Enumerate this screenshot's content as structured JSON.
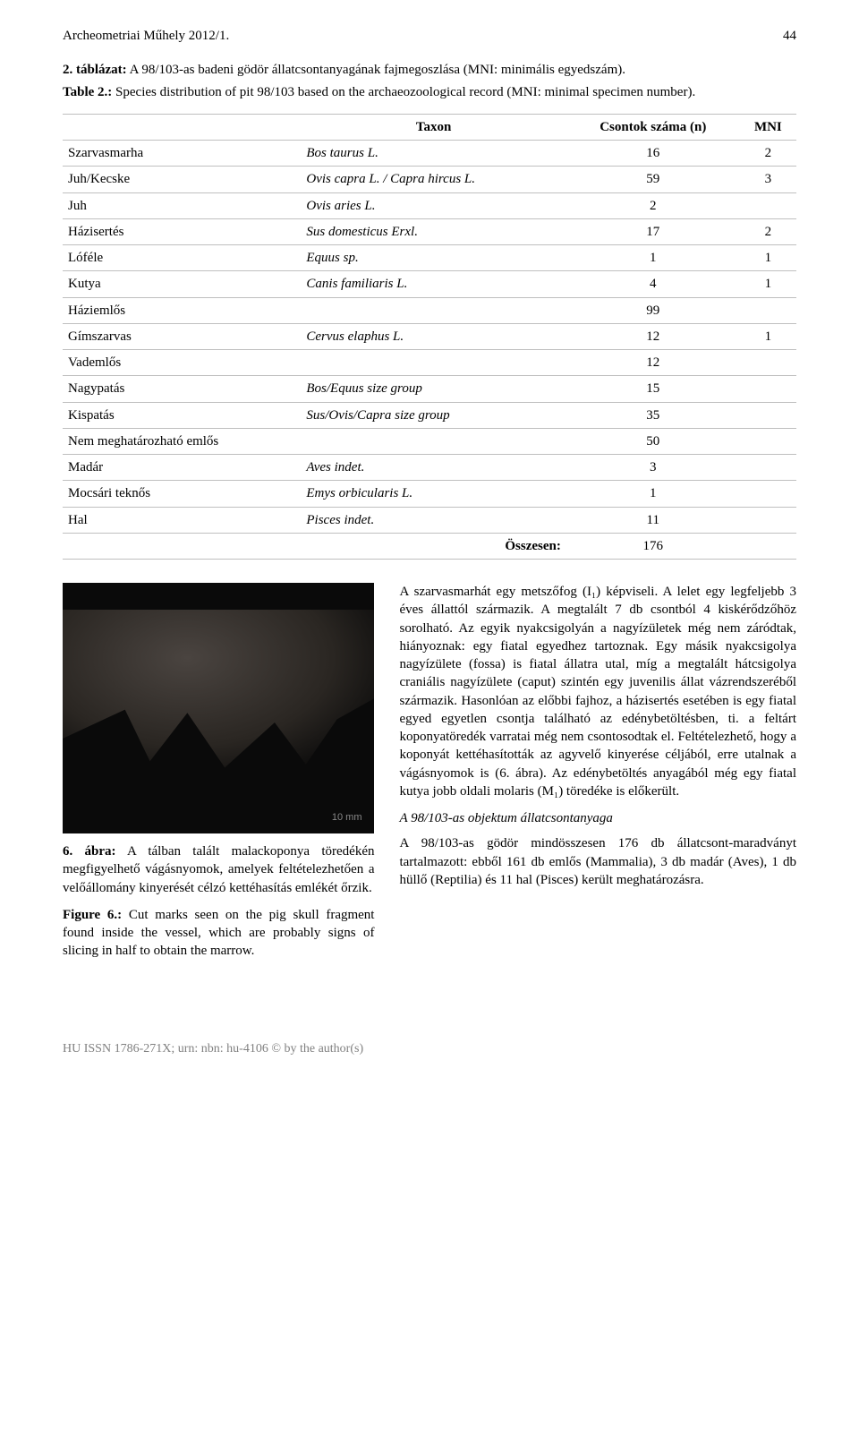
{
  "header": {
    "journal": "Archeometriai Műhely 2012/1.",
    "page": "44"
  },
  "tableCaption": {
    "hu_bold": "2. táblázat:",
    "hu_rest": " A 98/103-as badeni gödör állatcsontanyagának fajmegoszlása (MNI: minimális egyedszám).",
    "en_bold": "Table 2.:",
    "en_rest": " Species distribution of pit 98/103 based on the archaeozoological record (MNI: minimal specimen number)."
  },
  "table": {
    "headers": {
      "c1": "",
      "c2": "Taxon",
      "c3": "Csontok száma (n)",
      "c4": "MNI"
    },
    "rows": [
      {
        "a": "Szarvasmarha",
        "b": "Bos taurus L.",
        "b_italic": true,
        "c": "16",
        "d": "2"
      },
      {
        "a": "Juh/Kecske",
        "b": "Ovis capra L. / Capra hircus L.",
        "b_italic": true,
        "c": "59",
        "d": "3"
      },
      {
        "a": "Juh",
        "b": "Ovis aries L.",
        "b_italic": true,
        "c": "2",
        "d": ""
      },
      {
        "a": "Házisertés",
        "b": "Sus domesticus Erxl.",
        "b_italic": true,
        "c": "17",
        "d": "2"
      },
      {
        "a": "Lóféle",
        "b": "Equus sp.",
        "b_italic": true,
        "c": "1",
        "d": "1"
      },
      {
        "a": "Kutya",
        "b": "Canis familiaris L.",
        "b_italic": true,
        "c": "4",
        "d": "1"
      },
      {
        "a": "Háziemlős",
        "b": "",
        "b_italic": false,
        "c": "99",
        "d": ""
      },
      {
        "a": "Gímszarvas",
        "b": "Cervus elaphus L.",
        "b_italic": true,
        "c": "12",
        "d": "1"
      },
      {
        "a": "Vademlős",
        "b": "",
        "b_italic": false,
        "c": "12",
        "d": ""
      },
      {
        "a": "Nagypatás",
        "b": "Bos/Equus size group",
        "b_italic": true,
        "c": "15",
        "d": ""
      },
      {
        "a": "Kispatás",
        "b": "Sus/Ovis/Capra size group",
        "b_italic": true,
        "c": "35",
        "d": ""
      },
      {
        "a": "Nem meghatározható emlős",
        "b": "",
        "b_italic": false,
        "c": "50",
        "d": ""
      },
      {
        "a": "Madár",
        "b": "Aves indet.",
        "b_italic": true,
        "c": "3",
        "d": ""
      },
      {
        "a": "Mocsári teknős",
        "b": "Emys orbicularis L.",
        "b_italic": true,
        "c": "1",
        "d": ""
      },
      {
        "a": "Hal",
        "b": "Pisces indet.",
        "b_italic": true,
        "c": "11",
        "d": ""
      }
    ],
    "total": {
      "label": "Összesen:",
      "value": "176"
    }
  },
  "figure": {
    "scale": "10 mm",
    "hu_bold": "6. ábra:",
    "hu_rest": " A tálban talált malackoponya töredékén megfigyelhető vágásnyomok, amelyek feltételezhetően a velőállomány kinyerését célzó kettéhasítás emlékét őrzik.",
    "en_bold": "Figure 6.:",
    "en_rest": " Cut marks seen on the pig skull fragment found inside the vessel, which are probably signs of slicing in half to obtain the marrow."
  },
  "rightCol": {
    "p1": "A szarvasmarhát egy metszőfog (I₁) képviseli. A lelet egy legfeljebb 3 éves állattól származik. A megtalált 7 db csontból 4 kiskérődzőhöz sorolható. Az egyik nyakcsigolyán a nagyízületek még nem záródtak, hiányoznak: egy fiatal egyedhez tartoznak. Egy másik nyakcsigolya nagyízülete (fossa) is fiatal állatra utal, míg a megtalált hátcsigolya craniális nagyízülete (caput) szintén egy juvenilis állat vázrendszeréből származik. Hasonlóan az előbbi fajhoz, a házisertés esetében is egy fiatal egyed egyetlen csontja található az edénybetöltésben, ti. a feltárt koponyatöredék varratai még nem csontosodtak el. Feltételezhető, hogy a koponyát kettéhasították az agyvelő kinyerése céljából, erre utalnak a vágásnyomok is (6. ábra). Az edénybetöltés anyagából még egy fiatal kutya jobb oldali molaris (M₁) töredéke is előkerült.",
    "subhead": "A 98/103-as objektum állatcsontanyaga",
    "p2": "A 98/103-as gödör mindösszesen 176 db állatcsont-maradványt tartalmazott: ebből 161 db emlős (Mammalia), 3 db madár (Aves), 1 db hüllő (Reptilia) és 11 hal (Pisces) került meghatározásra."
  },
  "footer": "HU ISSN 1786-271X; urn: nbn: hu-4106 © by the author(s)"
}
